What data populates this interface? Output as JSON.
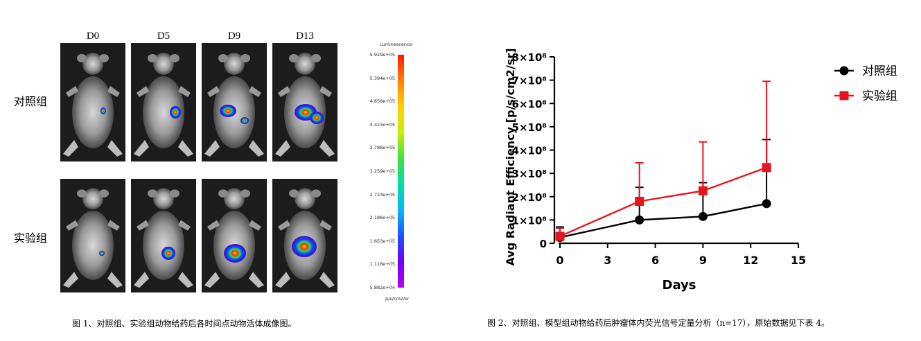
{
  "imaging": {
    "days": [
      "D0",
      "D5",
      "D9",
      "D13"
    ],
    "groups": [
      "对照组",
      "实验组"
    ],
    "colorbar": {
      "title": "Luminescence",
      "ticks": [
        "5.929e+05",
        "5.394e+05",
        "4.858e+05",
        "4.323e+05",
        "3.788e+05",
        "3.259e+05",
        "2.723e+05",
        "2.188e+05",
        "1.653e+05",
        "1.118e+05",
        "5.882e+04"
      ],
      "unit": "p/s/cm2/sr"
    },
    "caption": "图 1、对照组、实验组动物给药后各时间点动物活体成像图。"
  },
  "chart_caption": "图 2、对照组、模型组动物给药后肿瘤体内荧光信号定量分析（n=17），原始数据见下表 4。",
  "chart_data": {
    "type": "line",
    "xlabel": "Days",
    "ylabel": "Avg Radiant Efficiency [p/s/cm2/sr]",
    "xlim": [
      0,
      15
    ],
    "ylim": [
      0,
      800000000
    ],
    "x_ticks": [
      0,
      3,
      6,
      9,
      12,
      15
    ],
    "y_ticks": [
      0,
      100000000,
      200000000,
      300000000,
      400000000,
      500000000,
      600000000,
      700000000,
      800000000
    ],
    "y_tick_labels": [
      "0",
      "1×10⁸",
      "2×10⁸",
      "3×10⁸",
      "4×10⁸",
      "5×10⁸",
      "6×10⁸",
      "7×10⁸",
      "8×10⁸"
    ],
    "legend_position": "top-right",
    "grid": false,
    "series": [
      {
        "name": "对照组",
        "color": "#000000",
        "marker": "circle",
        "x": [
          0,
          5,
          9,
          13
        ],
        "y": [
          25000000,
          100000000,
          115000000,
          170000000
        ],
        "error": [
          45000000,
          140000000,
          145000000,
          275000000
        ]
      },
      {
        "name": "实验组",
        "color": "#e8141e",
        "marker": "square",
        "x": [
          0,
          5,
          9,
          13
        ],
        "y": [
          30000000,
          180000000,
          225000000,
          325000000
        ],
        "error": [
          35000000,
          165000000,
          210000000,
          370000000
        ]
      }
    ]
  }
}
